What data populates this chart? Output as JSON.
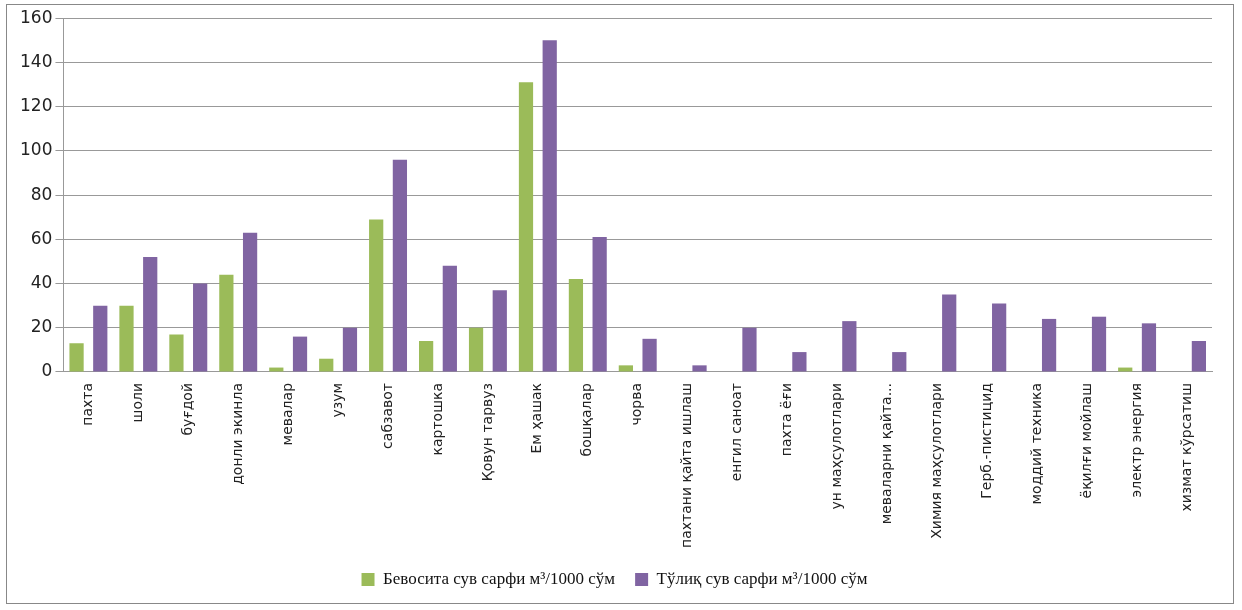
{
  "chart_data": {
    "type": "bar",
    "categories": [
      "пахта",
      "шоли",
      "буғдой",
      "донли экинла",
      "мевалар",
      "узум",
      "сабзавот",
      "картошка",
      "Қовун тарвуз",
      "Ем ҳашак",
      "бошқалар",
      "чорва",
      "пахтани қайта ишлаш",
      "енгил саноат",
      "пахта ёғи",
      "ун маҳсулотлари",
      "меваларни қайта...",
      "Химия маҳсулотлари",
      "Герб.-пистицид",
      "моддий техника",
      "ёқилғи мойлаш",
      "электр энергия",
      "хизмат кўрсатиш"
    ],
    "series": [
      {
        "name": "Бевосита сув сарфи м³/1000 сўм",
        "color": "#9bbb59",
        "values": [
          13,
          30,
          17,
          44,
          2,
          6,
          69,
          14,
          20,
          131,
          42,
          3,
          0,
          0,
          0,
          0,
          0,
          0,
          0,
          0,
          0,
          2,
          0
        ]
      },
      {
        "name": "Тўлиқ сув сарфи м³/1000 сўм",
        "color": "#8064a2",
        "values": [
          30,
          52,
          40,
          63,
          16,
          20,
          96,
          48,
          37,
          150,
          61,
          15,
          3,
          20,
          9,
          23,
          9,
          35,
          31,
          24,
          25,
          22,
          14
        ]
      }
    ],
    "ylim": [
      0,
      160
    ],
    "yticks": [
      0,
      20,
      40,
      60,
      80,
      100,
      120,
      140,
      160
    ],
    "grid": "y",
    "legend": "bottom"
  }
}
